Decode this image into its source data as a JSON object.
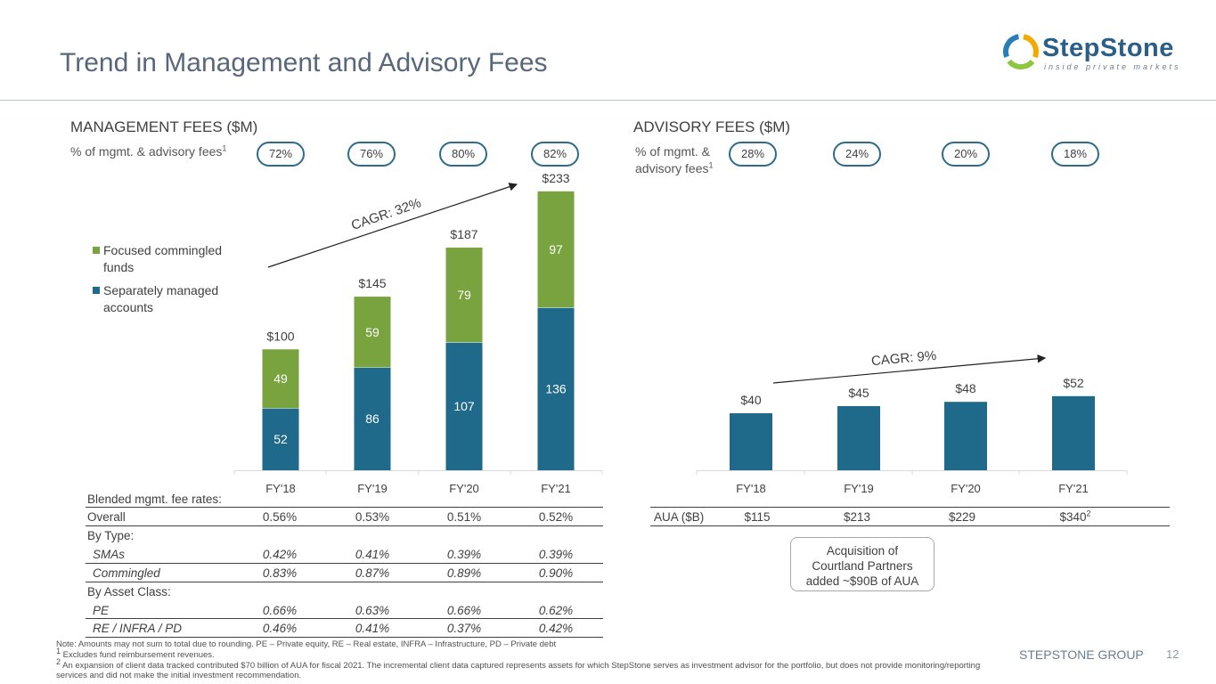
{
  "slide": {
    "title": "Trend in Management and Advisory Fees",
    "logo_text": "StepStone",
    "logo_tagline": "inside private markets",
    "brand_footer": "STEPSTONE GROUP",
    "page_number": "12",
    "colors": {
      "sma": "#1f6a8a",
      "commingled": "#78a33e",
      "pill_border": "#2c6b8a",
      "title": "#58687a"
    }
  },
  "management": {
    "section_title": "MANAGEMENT FEES ($M)",
    "pct_label": "% of mgmt. & advisory fees",
    "pct_sup": "1",
    "pcts": [
      "72%",
      "76%",
      "80%",
      "82%"
    ],
    "cagr_label": "CAGR: 32%",
    "legend": [
      {
        "label": "Focused commingled funds",
        "color": "#78a33e"
      },
      {
        "label": "Separately managed accounts",
        "color": "#1f6a8a"
      }
    ]
  },
  "advisory": {
    "section_title": "ADVISORY FEES ($M)",
    "pct_label_line1": "% of mgmt. &",
    "pct_label_line2": "advisory fees",
    "pct_sup": "1",
    "pcts": [
      "28%",
      "24%",
      "20%",
      "18%"
    ],
    "cagr_label": "CAGR: 9%",
    "aua_label": "AUA ($B)",
    "aua_values": [
      "$115",
      "$213",
      "$229",
      "$340"
    ],
    "aua_last_sup": "2",
    "callout": [
      "Acquisition of",
      "Courtland Partners",
      "added ~$90B of AUA"
    ]
  },
  "chart_data": [
    {
      "type": "bar",
      "stacked": true,
      "title": "MANAGEMENT FEES ($M)",
      "categories": [
        "FY'18",
        "FY'19",
        "FY'20",
        "FY'21"
      ],
      "series": [
        {
          "name": "Separately managed accounts",
          "values": [
            52,
            86,
            107,
            136
          ]
        },
        {
          "name": "Focused commingled funds",
          "values": [
            49,
            59,
            79,
            97
          ]
        }
      ],
      "totals": [
        "$100",
        "$145",
        "$187",
        "$233"
      ],
      "ylim": [
        0,
        240
      ],
      "legend_position": "left"
    },
    {
      "type": "bar",
      "stacked": false,
      "title": "ADVISORY FEES ($M)",
      "categories": [
        "FY'18",
        "FY'19",
        "FY'20",
        "FY'21"
      ],
      "series": [
        {
          "name": "Advisory fees",
          "values": [
            40,
            45,
            48,
            52
          ]
        }
      ],
      "labels": [
        "$40",
        "$45",
        "$48",
        "$52"
      ],
      "ylim": [
        0,
        240
      ]
    }
  ],
  "fee_table": {
    "header": "Blended mgmt. fee rates:",
    "overall": {
      "label": "Overall",
      "values": [
        "0.56%",
        "0.53%",
        "0.51%",
        "0.52%"
      ]
    },
    "by_type_label": "By Type:",
    "smas": {
      "label": "SMAs",
      "values": [
        "0.42%",
        "0.41%",
        "0.39%",
        "0.39%"
      ]
    },
    "commingled": {
      "label": "Commingled",
      "values": [
        "0.83%",
        "0.87%",
        "0.89%",
        "0.90%"
      ]
    },
    "by_asset_label": "By Asset Class:",
    "pe": {
      "label": "PE",
      "values": [
        "0.66%",
        "0.63%",
        "0.66%",
        "0.62%"
      ]
    },
    "re": {
      "label": "RE / INFRA / PD",
      "values": [
        "0.46%",
        "0.41%",
        "0.37%",
        "0.42%"
      ]
    }
  },
  "footnotes": {
    "note": "Note: Amounts may not sum to total due to rounding. PE – Private equity, RE – Real estate, INFRA – Infrastructure, PD – Private debt",
    "fn1_num": "1",
    "fn1": "Excludes fund reimbursement revenues.",
    "fn2_num": "2",
    "fn2": "An expansion of client data tracked contributed $70 billion of AUA for fiscal 2021. The incremental client data captured represents assets for which StepStone serves as investment advisor for the portfolio, but does not provide monitoring/reporting services and did not make the initial investment recommendation."
  }
}
